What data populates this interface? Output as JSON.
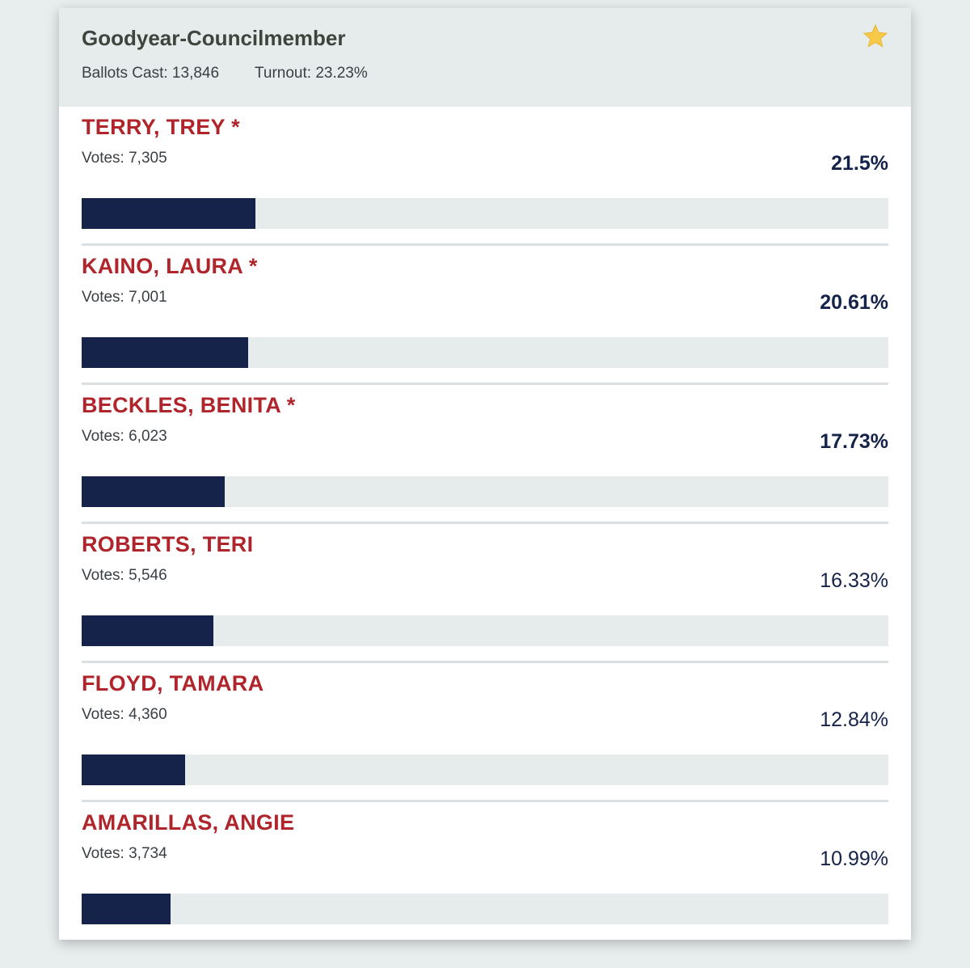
{
  "header": {
    "title": "Goodyear-Councilmember",
    "ballots_cast": "Ballots Cast: 13,846",
    "turnout": "Turnout: 23.23%"
  },
  "candidates": [
    {
      "name": "TERRY, TREY *",
      "votes": "Votes: 7,305",
      "percent": 21.5,
      "percent_label": "21.5%",
      "elected": true
    },
    {
      "name": "KAINO, LAURA *",
      "votes": "Votes: 7,001",
      "percent": 20.61,
      "percent_label": "20.61%",
      "elected": true
    },
    {
      "name": "BECKLES, BENITA *",
      "votes": "Votes: 6,023",
      "percent": 17.73,
      "percent_label": "17.73%",
      "elected": true
    },
    {
      "name": "ROBERTS, TERI",
      "votes": "Votes: 5,546",
      "percent": 16.33,
      "percent_label": "16.33%",
      "elected": false
    },
    {
      "name": "FLOYD, TAMARA",
      "votes": "Votes: 4,360",
      "percent": 12.84,
      "percent_label": "12.84%",
      "elected": false
    },
    {
      "name": "AMARILLAS, ANGIE",
      "votes": "Votes: 3,734",
      "percent": 10.99,
      "percent_label": "10.99%",
      "elected": false
    }
  ]
}
